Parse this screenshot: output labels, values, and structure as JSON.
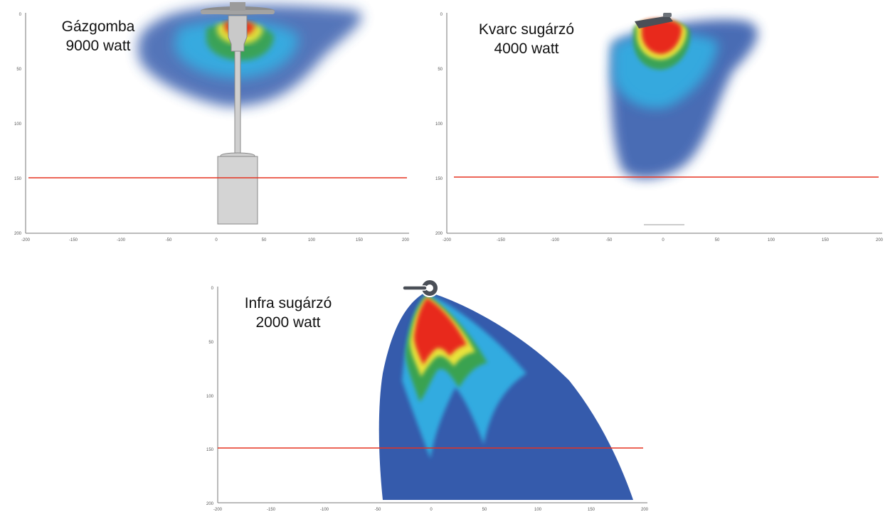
{
  "panels": [
    {
      "title_line1": "Gázgomba",
      "title_line2": "9000 watt",
      "y_ticks": [
        "0",
        "50",
        "100",
        "150",
        "200"
      ],
      "x_ticks": [
        "-200",
        "-150",
        "-100",
        "-50",
        "0",
        "50",
        "100",
        "150",
        "200"
      ],
      "icon": "patio-heater-icon"
    },
    {
      "title_line1": "Kvarc sugárzó",
      "title_line2": "4000 watt",
      "y_ticks": [
        "0",
        "50",
        "100",
        "150",
        "200"
      ],
      "x_ticks": [
        "-200",
        "-150",
        "-100",
        "-50",
        "0",
        "50",
        "100",
        "150",
        "200"
      ],
      "icon": "quartz-heater-icon"
    },
    {
      "title_line1": "Infra sugárzó",
      "title_line2": "2000 watt",
      "y_ticks": [
        "0",
        "50",
        "100",
        "150",
        "200"
      ],
      "x_ticks": [
        "-200",
        "-150",
        "-100",
        "-50",
        "0",
        "50",
        "100",
        "150",
        "200"
      ],
      "icon": "infrared-heater-icon"
    }
  ],
  "colors": {
    "hot": "#e8271c",
    "warm": "#f2e63a",
    "mid": "#3aa24a",
    "cool": "#33b4e6",
    "cold": "#2a52a8",
    "reference_line": "#e53320"
  }
}
